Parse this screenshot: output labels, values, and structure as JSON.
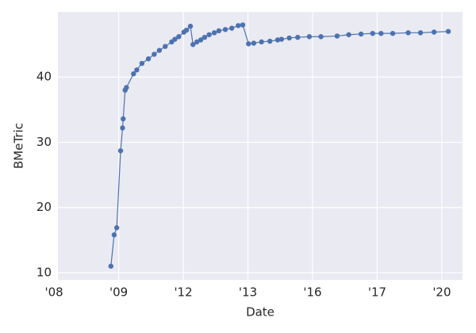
{
  "chart_data": {
    "type": "line",
    "x_label": "Date",
    "y_label": "BMeTric",
    "x": [
      0.88,
      0.93,
      0.97,
      1.03,
      1.06,
      1.07,
      1.1,
      1.12,
      1.23,
      1.28,
      1.36,
      1.46,
      1.55,
      1.63,
      1.72,
      1.82,
      1.87,
      1.93,
      2.01,
      2.05,
      2.11,
      2.15,
      2.21,
      2.27,
      2.33,
      2.4,
      2.48,
      2.55,
      2.65,
      2.75,
      2.85,
      2.92,
      3.01,
      3.09,
      3.21,
      3.34,
      3.46,
      3.52,
      3.64,
      3.77,
      3.95,
      4.13,
      4.38,
      4.56,
      4.75,
      4.93,
      5.06,
      5.24,
      5.48,
      5.67,
      5.88,
      6.1
    ],
    "series": [
      {
        "name": "BMeTric",
        "color": "#4c72b0",
        "values": [
          11.0,
          15.8,
          16.9,
          28.7,
          32.2,
          33.6,
          38.0,
          38.4,
          40.5,
          41.1,
          42.1,
          42.8,
          43.5,
          44.1,
          44.7,
          45.4,
          45.8,
          46.2,
          46.9,
          47.2,
          47.8,
          45.0,
          45.4,
          45.7,
          46.1,
          46.5,
          46.8,
          47.1,
          47.3,
          47.5,
          47.9,
          48.0,
          45.1,
          45.2,
          45.4,
          45.5,
          45.7,
          45.8,
          46.0,
          46.1,
          46.2,
          46.2,
          46.3,
          46.5,
          46.6,
          46.7,
          46.7,
          46.7,
          46.8,
          46.8,
          46.9,
          47.0
        ]
      }
    ],
    "xlim": [
      0.06,
      6.32
    ],
    "xticks": [
      {
        "value": 0,
        "label": "'08"
      },
      {
        "value": 1,
        "label": "'09"
      },
      {
        "value": 2,
        "label": "'12"
      },
      {
        "value": 3,
        "label": "'13"
      },
      {
        "value": 4,
        "label": "'16"
      },
      {
        "value": 5,
        "label": "'17"
      },
      {
        "value": 6,
        "label": "'20"
      }
    ],
    "ylim": [
      8.9,
      50
    ],
    "yticks": [
      10,
      20,
      30,
      40
    ],
    "grid": true
  }
}
